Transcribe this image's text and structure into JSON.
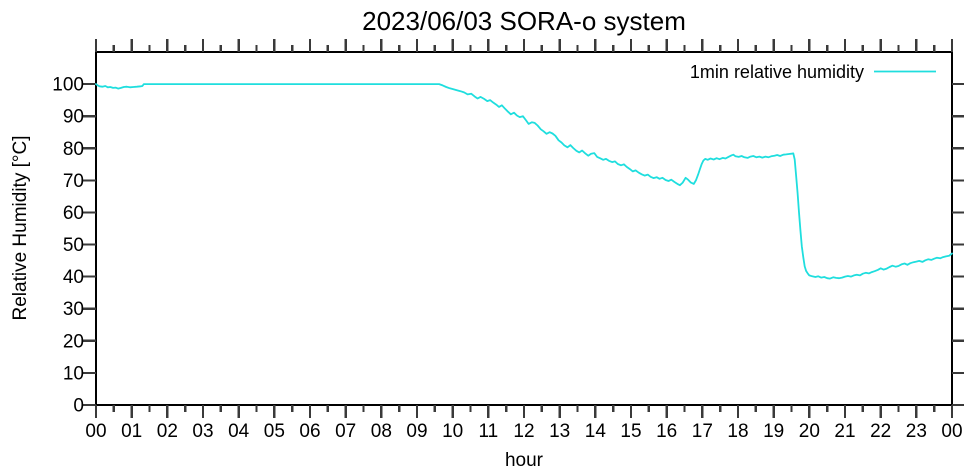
{
  "title": "2023/06/03 SORA-o system",
  "axes": {
    "x_label": "hour",
    "y_label": "Relative Humidity [°C]",
    "x_tick_labels": [
      "00",
      "01",
      "02",
      "03",
      "04",
      "05",
      "06",
      "07",
      "08",
      "09",
      "10",
      "11",
      "12",
      "13",
      "14",
      "15",
      "16",
      "17",
      "18",
      "19",
      "20",
      "21",
      "22",
      "23",
      "00"
    ],
    "y_tick_values": [
      0,
      10,
      20,
      30,
      40,
      50,
      60,
      70,
      80,
      90,
      100
    ]
  },
  "legend": {
    "label": "1min relative humidity"
  },
  "colors": {
    "line": "#1fdede",
    "frame": "#000000",
    "tick": "#3a3a3a",
    "text": "#000000",
    "background": "#ffffff"
  },
  "chart_data": {
    "type": "line",
    "title": "2023/06/03 SORA-o system",
    "xlabel": "hour",
    "ylabel": "Relative Humidity [°C]",
    "xlim": [
      0,
      24
    ],
    "ylim": [
      0,
      110
    ],
    "x_major_tick_step_hours": 1,
    "x_minor_tick_step_hours": 0.5,
    "y_major_tick_step": 10,
    "grid": false,
    "tics_direction": "out",
    "legend_position": "top-right-inside",
    "series": [
      {
        "name": "1min relative humidity",
        "color": "#1fdede",
        "points": [
          [
            0.0,
            100
          ],
          [
            0.05,
            99.6
          ],
          [
            0.1,
            99.3
          ],
          [
            0.18,
            99.2
          ],
          [
            0.26,
            99.4
          ],
          [
            0.33,
            99.0
          ],
          [
            0.4,
            99.1
          ],
          [
            0.48,
            98.8
          ],
          [
            0.55,
            98.9
          ],
          [
            0.62,
            98.6
          ],
          [
            0.7,
            98.8
          ],
          [
            0.78,
            99.1
          ],
          [
            0.86,
            99.2
          ],
          [
            0.95,
            99.0
          ],
          [
            1.05,
            99.1
          ],
          [
            1.15,
            99.2
          ],
          [
            1.25,
            99.3
          ],
          [
            1.3,
            99.4
          ],
          [
            1.34,
            100
          ],
          [
            2,
            100
          ],
          [
            3,
            100
          ],
          [
            4,
            100
          ],
          [
            5,
            100
          ],
          [
            6,
            100
          ],
          [
            7,
            100
          ],
          [
            8,
            100
          ],
          [
            9,
            100
          ],
          [
            9.62,
            100
          ],
          [
            9.72,
            99.6
          ],
          [
            9.82,
            99.1
          ],
          [
            9.92,
            98.7
          ],
          [
            10.02,
            98.4
          ],
          [
            10.12,
            98.1
          ],
          [
            10.22,
            97.8
          ],
          [
            10.32,
            97.4
          ],
          [
            10.42,
            96.8
          ],
          [
            10.52,
            97.0
          ],
          [
            10.62,
            96.1
          ],
          [
            10.7,
            95.5
          ],
          [
            10.78,
            96.0
          ],
          [
            10.88,
            95.4
          ],
          [
            10.97,
            94.7
          ],
          [
            11.05,
            95.0
          ],
          [
            11.13,
            94.3
          ],
          [
            11.22,
            93.6
          ],
          [
            11.3,
            92.9
          ],
          [
            11.38,
            93.4
          ],
          [
            11.47,
            92.3
          ],
          [
            11.55,
            91.4
          ],
          [
            11.63,
            90.6
          ],
          [
            11.72,
            91.1
          ],
          [
            11.8,
            90.2
          ],
          [
            11.88,
            89.7
          ],
          [
            11.97,
            90.0
          ],
          [
            12.05,
            88.8
          ],
          [
            12.13,
            87.6
          ],
          [
            12.22,
            88.1
          ],
          [
            12.3,
            87.9
          ],
          [
            12.38,
            87.1
          ],
          [
            12.47,
            85.9
          ],
          [
            12.55,
            85.3
          ],
          [
            12.63,
            84.5
          ],
          [
            12.72,
            85.0
          ],
          [
            12.8,
            84.6
          ],
          [
            12.88,
            83.9
          ],
          [
            12.97,
            82.5
          ],
          [
            13.05,
            81.8
          ],
          [
            13.13,
            80.9
          ],
          [
            13.22,
            80.3
          ],
          [
            13.3,
            81.0
          ],
          [
            13.38,
            80.1
          ],
          [
            13.47,
            79.2
          ],
          [
            13.55,
            78.7
          ],
          [
            13.63,
            79.3
          ],
          [
            13.72,
            78.4
          ],
          [
            13.8,
            77.7
          ],
          [
            13.88,
            78.3
          ],
          [
            13.97,
            78.5
          ],
          [
            14.05,
            77.3
          ],
          [
            14.13,
            76.9
          ],
          [
            14.22,
            76.4
          ],
          [
            14.3,
            76.7
          ],
          [
            14.38,
            76.1
          ],
          [
            14.47,
            75.7
          ],
          [
            14.55,
            75.9
          ],
          [
            14.63,
            75.1
          ],
          [
            14.72,
            74.7
          ],
          [
            14.8,
            75.0
          ],
          [
            14.88,
            74.2
          ],
          [
            14.97,
            73.5
          ],
          [
            15.05,
            72.8
          ],
          [
            15.13,
            73.1
          ],
          [
            15.22,
            72.4
          ],
          [
            15.3,
            71.9
          ],
          [
            15.38,
            71.5
          ],
          [
            15.47,
            71.8
          ],
          [
            15.55,
            71.1
          ],
          [
            15.63,
            70.7
          ],
          [
            15.72,
            71.0
          ],
          [
            15.8,
            70.5
          ],
          [
            15.88,
            70.8
          ],
          [
            15.97,
            70.1
          ],
          [
            16.05,
            69.8
          ],
          [
            16.13,
            70.2
          ],
          [
            16.22,
            69.5
          ],
          [
            16.3,
            68.9
          ],
          [
            16.37,
            68.5
          ],
          [
            16.45,
            69.3
          ],
          [
            16.53,
            70.8
          ],
          [
            16.6,
            70.2
          ],
          [
            16.68,
            69.3
          ],
          [
            16.76,
            68.9
          ],
          [
            16.82,
            70.0
          ],
          [
            16.88,
            71.8
          ],
          [
            16.93,
            73.4
          ],
          [
            16.98,
            75.0
          ],
          [
            17.03,
            76.2
          ],
          [
            17.08,
            76.7
          ],
          [
            17.15,
            76.4
          ],
          [
            17.23,
            76.8
          ],
          [
            17.32,
            76.5
          ],
          [
            17.4,
            76.9
          ],
          [
            17.48,
            76.6
          ],
          [
            17.57,
            77.0
          ],
          [
            17.65,
            76.8
          ],
          [
            17.73,
            77.3
          ],
          [
            17.82,
            77.8
          ],
          [
            17.87,
            78.0
          ],
          [
            17.93,
            77.5
          ],
          [
            18.02,
            77.3
          ],
          [
            18.1,
            77.6
          ],
          [
            18.18,
            77.2
          ],
          [
            18.27,
            77.0
          ],
          [
            18.35,
            77.4
          ],
          [
            18.43,
            77.6
          ],
          [
            18.52,
            77.2
          ],
          [
            18.6,
            77.4
          ],
          [
            18.68,
            77.1
          ],
          [
            18.77,
            77.4
          ],
          [
            18.85,
            77.2
          ],
          [
            18.93,
            77.5
          ],
          [
            19.02,
            77.7
          ],
          [
            19.1,
            77.9
          ],
          [
            19.18,
            77.6
          ],
          [
            19.27,
            78.0
          ],
          [
            19.35,
            78.1
          ],
          [
            19.43,
            78.2
          ],
          [
            19.5,
            78.3
          ],
          [
            19.55,
            78.4
          ],
          [
            19.59,
            76.5
          ],
          [
            19.63,
            71.5
          ],
          [
            19.67,
            66.0
          ],
          [
            19.71,
            60.0
          ],
          [
            19.75,
            54.5
          ],
          [
            19.79,
            49.5
          ],
          [
            19.83,
            46.0
          ],
          [
            19.87,
            43.2
          ],
          [
            19.91,
            41.8
          ],
          [
            19.96,
            40.9
          ],
          [
            20.0,
            40.4
          ],
          [
            20.08,
            40.1
          ],
          [
            20.17,
            39.9
          ],
          [
            20.25,
            40.1
          ],
          [
            20.33,
            39.7
          ],
          [
            20.42,
            39.9
          ],
          [
            20.5,
            39.5
          ],
          [
            20.58,
            39.4
          ],
          [
            20.67,
            39.8
          ],
          [
            20.75,
            39.6
          ],
          [
            20.83,
            39.5
          ],
          [
            20.92,
            39.7
          ],
          [
            21.0,
            40.0
          ],
          [
            21.08,
            40.2
          ],
          [
            21.17,
            40.0
          ],
          [
            21.25,
            40.4
          ],
          [
            21.33,
            40.6
          ],
          [
            21.42,
            40.4
          ],
          [
            21.5,
            40.9
          ],
          [
            21.58,
            41.2
          ],
          [
            21.67,
            41.0
          ],
          [
            21.75,
            41.4
          ],
          [
            21.83,
            41.7
          ],
          [
            21.92,
            42.1
          ],
          [
            22.0,
            42.6
          ],
          [
            22.08,
            42.2
          ],
          [
            22.17,
            42.5
          ],
          [
            22.25,
            43.0
          ],
          [
            22.33,
            43.4
          ],
          [
            22.42,
            43.1
          ],
          [
            22.5,
            43.3
          ],
          [
            22.58,
            43.8
          ],
          [
            22.67,
            44.1
          ],
          [
            22.75,
            43.7
          ],
          [
            22.83,
            44.2
          ],
          [
            22.92,
            44.5
          ],
          [
            23.0,
            44.7
          ],
          [
            23.08,
            44.9
          ],
          [
            23.17,
            44.6
          ],
          [
            23.25,
            45.1
          ],
          [
            23.33,
            45.4
          ],
          [
            23.42,
            45.2
          ],
          [
            23.5,
            45.6
          ],
          [
            23.58,
            45.9
          ],
          [
            23.67,
            45.7
          ],
          [
            23.75,
            46.1
          ],
          [
            23.83,
            46.3
          ],
          [
            23.92,
            46.5
          ],
          [
            24.0,
            47.2
          ]
        ]
      }
    ]
  }
}
